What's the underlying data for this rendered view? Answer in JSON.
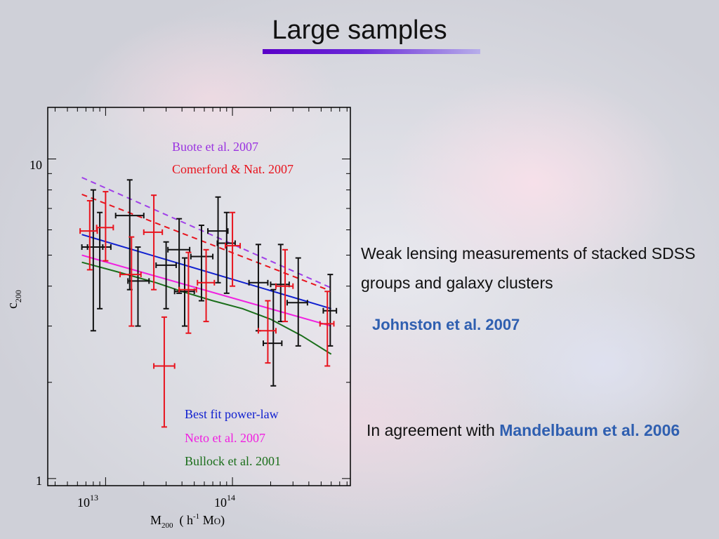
{
  "slide": {
    "title": "Large samples",
    "text_block": "Weak lensing measurements of stacked SDSS groups and galaxy clusters",
    "citation": "Johnston et al. 2007",
    "agreement_prefix": "In agreement with ",
    "agreement_ref": "Mandelbaum et al. 2006"
  },
  "chart_data": {
    "type": "scatter",
    "xscale": "log",
    "yscale": "log",
    "xlim": [
      3500000000000.0,
      850000000000000.0
    ],
    "ylim": [
      0.95,
      14.5
    ],
    "xlabel": "M200 ( h-1 MO)",
    "xlabel_main": "M",
    "xlabel_sub": "200",
    "xlabel_rest1": "  ( h",
    "xlabel_sup": "-1",
    "xlabel_rest2": " M",
    "xlabel_sun": "O",
    "xlabel_close": ")",
    "ylabel_main": "c",
    "ylabel_sub": "200",
    "xticks": [
      {
        "value": 10000000000000.0,
        "base": "10",
        "exp": "13"
      },
      {
        "value": 100000000000000.0,
        "base": "10",
        "exp": "14"
      }
    ],
    "yticks": [
      {
        "value": 1,
        "label": "1"
      },
      {
        "value": 10,
        "label": "10"
      }
    ],
    "colors": {
      "black_points": "#111111",
      "red_points": "#e8141e",
      "buote": "#a040e8",
      "comerford": "#e8141e",
      "best_fit": "#1020d0",
      "neto": "#f020e0",
      "bullock": "#1a6e1a"
    },
    "legend_top": [
      {
        "name": "Buote et al. 2007",
        "color": "#9a32e0"
      },
      {
        "name": "Comerford & Nat. 2007",
        "color": "#e8141e"
      }
    ],
    "legend_bottom": [
      {
        "name": "Best fit power-law",
        "color": "#1020d0"
      },
      {
        "name": "Neto et al. 2007",
        "color": "#f020e0"
      },
      {
        "name": "Bullock et al. 2001",
        "color": "#1a6e1a"
      }
    ],
    "series": [
      {
        "key": "buote",
        "style": "dashed",
        "x": [
          6500000000000.0,
          600000000000000.0
        ],
        "y": [
          8.75,
          3.95
        ]
      },
      {
        "key": "comerford",
        "style": "dashed",
        "x": [
          6500000000000.0,
          560000000000000.0
        ],
        "y": [
          7.75,
          3.9
        ]
      },
      {
        "key": "best_fit",
        "style": "solid",
        "x": [
          6500000000000.0,
          600000000000000.0
        ],
        "y": [
          5.8,
          3.4
        ]
      },
      {
        "key": "neto",
        "style": "solid",
        "x": [
          6500000000000.0,
          600000000000000.0
        ],
        "y": [
          5.0,
          3.0
        ]
      },
      {
        "key": "bullock",
        "style": "solid",
        "x": [
          6500000000000.0,
          12000000000000.0,
          25000000000000.0,
          40000000000000.0,
          70000000000000.0,
          120000000000000.0,
          200000000000000.0,
          350000000000000.0,
          600000000000000.0
        ],
        "y": [
          4.75,
          4.45,
          4.1,
          3.85,
          3.6,
          3.4,
          3.15,
          2.8,
          2.45
        ]
      }
    ],
    "points_black": [
      {
        "x": 8000000000000.0,
        "y": 5.3,
        "xerr": [
          6500000000000.0,
          9500000000000.0
        ],
        "yerr": [
          2.9,
          8.0
        ]
      },
      {
        "x": 9000000000000.0,
        "y": 5.3,
        "xerr": [
          7200000000000.0,
          11000000000000.0
        ],
        "yerr": [
          3.4,
          6.8
        ]
      },
      {
        "x": 15500000000000.0,
        "y": 6.65,
        "xerr": [
          12000000000000.0,
          20000000000000.0
        ],
        "yerr": [
          3.9,
          8.6
        ]
      },
      {
        "x": 18000000000000.0,
        "y": 4.15,
        "xerr": [
          15000000000000.0,
          22000000000000.0
        ],
        "yerr": [
          3.0,
          5.3
        ]
      },
      {
        "x": 30000000000000.0,
        "y": 4.65,
        "xerr": [
          25000000000000.0,
          36000000000000.0
        ],
        "yerr": [
          3.4,
          5.5
        ]
      },
      {
        "x": 38000000000000.0,
        "y": 5.2,
        "xerr": [
          31000000000000.0,
          46000000000000.0
        ],
        "yerr": [
          3.8,
          6.5
        ]
      },
      {
        "x": 42000000000000.0,
        "y": 3.85,
        "xerr": [
          35000000000000.0,
          50000000000000.0
        ],
        "yerr": [
          3.0,
          4.9
        ]
      },
      {
        "x": 57000000000000.0,
        "y": 4.95,
        "xerr": [
          47000000000000.0,
          70000000000000.0
        ],
        "yerr": [
          3.6,
          6.2
        ]
      },
      {
        "x": 77000000000000.0,
        "y": 5.95,
        "xerr": [
          64000000000000.0,
          92000000000000.0
        ],
        "yerr": [
          4.1,
          7.6
        ]
      },
      {
        "x": 90000000000000.0,
        "y": 5.45,
        "xerr": [
          76000000000000.0,
          105000000000000.0
        ],
        "yerr": [
          3.8,
          6.8
        ]
      },
      {
        "x": 160000000000000.0,
        "y": 4.1,
        "xerr": [
          135000000000000.0,
          190000000000000.0
        ],
        "yerr": [
          2.9,
          5.4
        ]
      },
      {
        "x": 210000000000000.0,
        "y": 2.65,
        "xerr": [
          175000000000000.0,
          245000000000000.0
        ],
        "yerr": [
          1.95,
          3.9
        ]
      },
      {
        "x": 240000000000000.0,
        "y": 4.05,
        "xerr": [
          200000000000000.0,
          280000000000000.0
        ],
        "yerr": [
          3.1,
          5.4
        ]
      },
      {
        "x": 330000000000000.0,
        "y": 3.55,
        "xerr": [
          270000000000000.0,
          390000000000000.0
        ],
        "yerr": [
          2.6,
          4.9
        ]
      },
      {
        "x": 590000000000000.0,
        "y": 3.35,
        "xerr": [
          520000000000000.0,
          660000000000000.0
        ],
        "yerr": [
          2.6,
          4.35
        ]
      }
    ],
    "points_red": [
      {
        "x": 7500000000000.0,
        "y": 5.95,
        "xerr": [
          6300000000000.0,
          8600000000000.0
        ],
        "yerr": [
          4.5,
          7.4
        ]
      },
      {
        "x": 10000000000000.0,
        "y": 6.1,
        "xerr": [
          8500000000000.0,
          11500000000000.0
        ],
        "yerr": [
          4.8,
          7.9
        ]
      },
      {
        "x": 16000000000000.0,
        "y": 4.35,
        "xerr": [
          13000000000000.0,
          19000000000000.0
        ],
        "yerr": [
          3.0,
          5.7
        ]
      },
      {
        "x": 24000000000000.0,
        "y": 5.9,
        "xerr": [
          20000000000000.0,
          28000000000000.0
        ],
        "yerr": [
          3.9,
          7.7
        ]
      },
      {
        "x": 29000000000000.0,
        "y": 2.25,
        "xerr": [
          24000000000000.0,
          35000000000000.0
        ],
        "yerr": [
          1.45,
          3.2
        ]
      },
      {
        "x": 45000000000000.0,
        "y": 3.9,
        "xerr": [
          38000000000000.0,
          52000000000000.0
        ],
        "yerr": [
          2.85,
          5.1
        ]
      },
      {
        "x": 62000000000000.0,
        "y": 4.1,
        "xerr": [
          53000000000000.0,
          72000000000000.0
        ],
        "yerr": [
          3.1,
          5.2
        ]
      },
      {
        "x": 100000000000000.0,
        "y": 5.35,
        "xerr": [
          88000000000000.0,
          115000000000000.0
        ],
        "yerr": [
          4.0,
          6.8
        ]
      },
      {
        "x": 190000000000000.0,
        "y": 2.9,
        "xerr": [
          160000000000000.0,
          220000000000000.0
        ],
        "yerr": [
          2.3,
          3.6
        ]
      },
      {
        "x": 260000000000000.0,
        "y": 4.0,
        "xerr": [
          220000000000000.0,
          300000000000000.0
        ],
        "yerr": [
          3.1,
          5.2
        ]
      },
      {
        "x": 560000000000000.0,
        "y": 3.05,
        "xerr": [
          490000000000000.0,
          630000000000000.0
        ],
        "yerr": [
          2.25,
          3.85
        ]
      }
    ]
  }
}
